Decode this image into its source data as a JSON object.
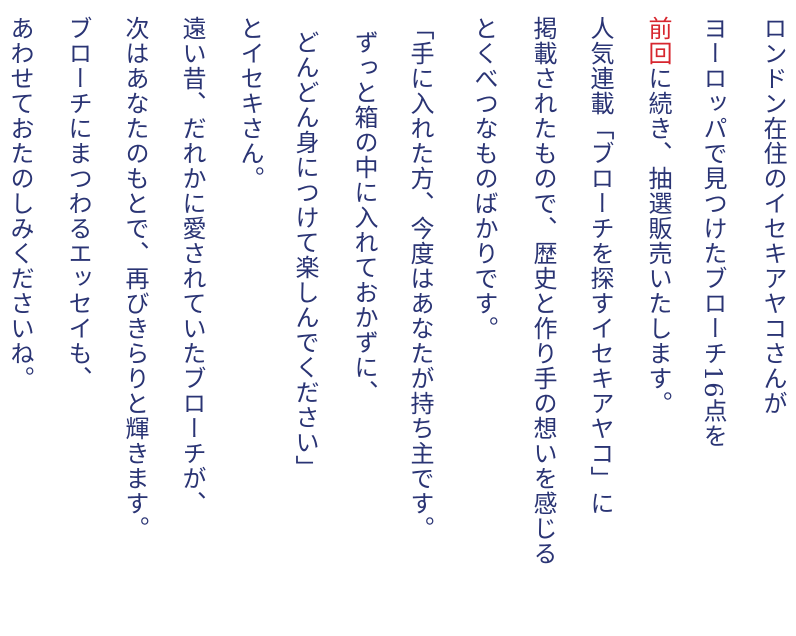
{
  "colors": {
    "text": "#2a3474",
    "highlight": "#d7262f"
  },
  "lines": [
    "ロンドン在住のイセキアヤコさんが",
    "ヨーロッパで見つけたブローチ16点を",
    {
      "highlight": "前回",
      "rest": "に続き、抽選販売いたします。"
    },
    "人気連載「ブローチを探すイセキアヤコ」に",
    "掲載されたもので、歴史と作り手の想いを感じる",
    "とくべつなものばかりです。",
    "「手に入れた方、今度はあなたが持ち主です。",
    "ずっと箱の中に入れておかずに、",
    "どんどん身につけて楽しんでください」",
    "とイセキさん。",
    "遠い昔、だれかに愛されていたブローチが、",
    "次はあなたのもとで、再びきらりと輝きます。",
    "ブローチにまつわるエッセイも、",
    "あわせておたのしみくださいね。"
  ]
}
